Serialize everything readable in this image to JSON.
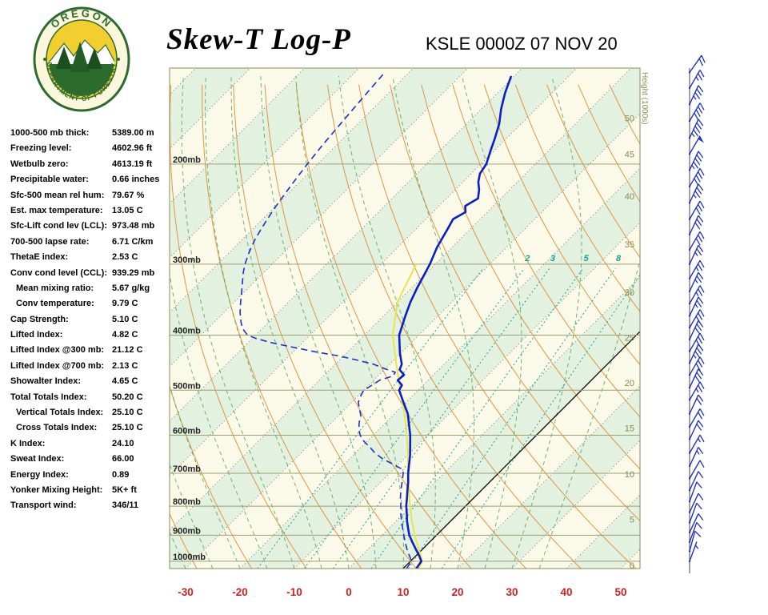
{
  "header": {
    "title": "Skew-T Log-P",
    "station_line": "KSLE 0000Z 07 NOV 20",
    "logo_text_top": "OREGON",
    "logo_text_bottom": "DEPARTMENT OF FORESTRY"
  },
  "indices": [
    {
      "label": "1000-500 mb thick:",
      "value": "5389.00 m"
    },
    {
      "label": "Freezing level:",
      "value": "4602.96 ft"
    },
    {
      "label": "Wetbulb zero:",
      "value": "4613.19 ft"
    },
    {
      "label": "Precipitable water:",
      "value": "0.66 inches"
    },
    {
      "label": "Sfc-500 mean rel hum:",
      "value": "79.67 %"
    },
    {
      "label": "Est. max temperature:",
      "value": "13.05 C"
    },
    {
      "label": "Sfc-Lift cond lev (LCL):",
      "value": "973.48 mb"
    },
    {
      "label": "700-500 lapse rate:",
      "value": "6.71 C/km"
    },
    {
      "label": "ThetaE index:",
      "value": "2.53 C"
    },
    {
      "label": "Conv cond level (CCL):",
      "value": "939.29 mb"
    },
    {
      "label": "Mean mixing ratio:",
      "value": "5.67 g/kg",
      "indent": true
    },
    {
      "label": "Conv temperature:",
      "value": "9.79 C",
      "indent": true
    },
    {
      "label": "Cap Strength:",
      "value": "5.10 C"
    },
    {
      "label": "Lifted Index:",
      "value": "4.82 C"
    },
    {
      "label": "Lifted Index @300 mb:",
      "value": "21.12 C"
    },
    {
      "label": "Lifted Index @700 mb:",
      "value": "2.13 C"
    },
    {
      "label": "Showalter Index:",
      "value": "4.65 C"
    },
    {
      "label": "Total Totals Index:",
      "value": "50.20 C"
    },
    {
      "label": "Vertical Totals Index:",
      "value": "25.10 C",
      "indent": true
    },
    {
      "label": "Cross Totals Index:",
      "value": "25.10 C",
      "indent": true
    },
    {
      "label": "K Index:",
      "value": "24.10"
    },
    {
      "label": "Sweat Index:",
      "value": "66.00"
    },
    {
      "label": "Energy Index:",
      "value": "0.89"
    },
    {
      "label": "Yonker Mixing Height:",
      "value": "5K+ ft"
    },
    {
      "label": "Transport wind:",
      "value": "346/11"
    }
  ],
  "chart_data": {
    "type": "line",
    "title": "Skew-T Log-P",
    "subtitle": "KSLE 0000Z 07 NOV 20",
    "pressure_range_mb": [
      1030,
      136
    ],
    "temp_axis_range_C": [
      -30,
      50
    ],
    "x_ticks": [
      -30,
      -20,
      -10,
      0,
      10,
      20,
      30,
      40,
      50
    ],
    "x_tick_labels": [
      "-30",
      "-20",
      "-10",
      "0",
      "10",
      "20",
      "30",
      "40",
      "50"
    ],
    "pressure_levels_mb": [
      200,
      300,
      400,
      500,
      600,
      700,
      800,
      900,
      1000
    ],
    "pressure_labels": [
      "200mb",
      "300mb",
      "400mb",
      "500mb",
      "600mb",
      "700mb",
      "800mb",
      "900mb",
      "1000mb"
    ],
    "height_axis_label": "Height (1000s)",
    "height_ticks": [
      {
        "label": "50",
        "p": 166
      },
      {
        "label": "45",
        "p": 192
      },
      {
        "label": "40",
        "p": 228
      },
      {
        "label": "35",
        "p": 277
      },
      {
        "label": "30",
        "p": 336
      },
      {
        "label": "25",
        "p": 404
      },
      {
        "label": "20",
        "p": 485
      },
      {
        "label": "15",
        "p": 583
      },
      {
        "label": "10",
        "p": 702
      },
      {
        "label": "5",
        "p": 843
      },
      {
        "label": "0",
        "p": 1016
      }
    ],
    "mixing_ratio_lines_gkg": [
      1,
      2,
      3,
      5,
      8,
      12
    ],
    "mixing_ratio_label_values": [
      2,
      3,
      5,
      8
    ],
    "mixing_ratio_labels": [
      "2",
      "3",
      "5",
      "8"
    ],
    "reference_isotherm_C": 10,
    "colors": {
      "band_cream": "#fbfae8",
      "band_green": "#e3f1e1",
      "dry_adiabat": "#df8a2d",
      "moist_adiabat": "#4ea24e",
      "mixing_ratio": "#18a0a0",
      "isotherm": "#777777",
      "pressure_line": "#a0a070",
      "border": "#8b8b5a",
      "axis_label_red": "#cc2222",
      "height_label": "#8b8b4f",
      "black_line": "#000000",
      "wind_barb": "#2233bb"
    },
    "series": [
      {
        "name": "parcel",
        "style": "solid",
        "color": "#e6e64a",
        "width": 2,
        "points_p_T": [
          [
            1030,
            12.8
          ],
          [
            1000,
            12.2
          ],
          [
            973,
            10.6
          ],
          [
            950,
            9.2
          ],
          [
            900,
            6.0
          ],
          [
            850,
            2.9
          ],
          [
            800,
            -0.2
          ],
          [
            750,
            -3.3
          ],
          [
            700,
            -6.6
          ],
          [
            650,
            -10.0
          ],
          [
            600,
            -13.8
          ],
          [
            550,
            -18.2
          ],
          [
            500,
            -23.3
          ],
          [
            450,
            -28.8
          ],
          [
            400,
            -34.8
          ],
          [
            350,
            -40.0
          ],
          [
            300,
            -43.5
          ]
        ]
      },
      {
        "name": "dewpoint",
        "style": "dashed",
        "color": "#1b2fd0",
        "width": 1.6,
        "points_p_T": [
          [
            1030,
            10.6
          ],
          [
            1000,
            10.2
          ],
          [
            975,
            8.6
          ],
          [
            950,
            7.0
          ],
          [
            925,
            5.5
          ],
          [
            900,
            4.0
          ],
          [
            875,
            2.5
          ],
          [
            850,
            1.0
          ],
          [
            825,
            -0.5
          ],
          [
            800,
            -1.9
          ],
          [
            775,
            -3.4
          ],
          [
            750,
            -4.8
          ],
          [
            725,
            -6.1
          ],
          [
            700,
            -7.5
          ],
          [
            690,
            -8.2
          ],
          [
            675,
            -11.0
          ],
          [
            660,
            -14.0
          ],
          [
            645,
            -16.4
          ],
          [
            630,
            -18.4
          ],
          [
            615,
            -20.6
          ],
          [
            600,
            -22.4
          ],
          [
            585,
            -23.8
          ],
          [
            570,
            -24.9
          ],
          [
            555,
            -25.8
          ],
          [
            540,
            -27.3
          ],
          [
            525,
            -28.8
          ],
          [
            510,
            -29.6
          ],
          [
            500,
            -30.0
          ],
          [
            490,
            -29.4
          ],
          [
            480,
            -28.9
          ],
          [
            472,
            -27.2
          ],
          [
            465,
            -27.5
          ],
          [
            458,
            -30.2
          ],
          [
            450,
            -33.0
          ],
          [
            443,
            -36.5
          ],
          [
            435,
            -41.0
          ],
          [
            428,
            -46.0
          ],
          [
            420,
            -51.0
          ],
          [
            412,
            -56.0
          ],
          [
            405,
            -59.5
          ],
          [
            400,
            -61.5
          ],
          [
            390,
            -63.5
          ],
          [
            380,
            -65.0
          ],
          [
            365,
            -67.0
          ],
          [
            350,
            -68.8
          ],
          [
            335,
            -70.6
          ],
          [
            320,
            -72.5
          ],
          [
            310,
            -73.8
          ],
          [
            300,
            -75.0
          ],
          [
            285,
            -76.5
          ],
          [
            270,
            -77.8
          ],
          [
            255,
            -78.8
          ],
          [
            240,
            -79.8
          ],
          [
            225,
            -80.6
          ],
          [
            210,
            -81.4
          ],
          [
            200,
            -81.9
          ],
          [
            185,
            -82.6
          ],
          [
            170,
            -83.2
          ],
          [
            155,
            -83.8
          ],
          [
            145,
            -84.2
          ],
          [
            138,
            -84.5
          ]
        ]
      },
      {
        "name": "temperature",
        "style": "solid",
        "color": "#0a1fc4",
        "width": 2.6,
        "points_p_T": [
          [
            1030,
            12.4
          ],
          [
            1000,
            12.0
          ],
          [
            975,
            10.4
          ],
          [
            950,
            8.6
          ],
          [
            925,
            6.8
          ],
          [
            900,
            5.0
          ],
          [
            875,
            3.5
          ],
          [
            850,
            2.0
          ],
          [
            825,
            0.6
          ],
          [
            800,
            -0.9
          ],
          [
            775,
            -2.2
          ],
          [
            750,
            -3.6
          ],
          [
            725,
            -5.0
          ],
          [
            700,
            -6.6
          ],
          [
            650,
            -9.6
          ],
          [
            600,
            -13.2
          ],
          [
            550,
            -17.6
          ],
          [
            525,
            -20.5
          ],
          [
            500,
            -23.5
          ],
          [
            490,
            -23.9
          ],
          [
            480,
            -25.6
          ],
          [
            470,
            -25.4
          ],
          [
            460,
            -27.2
          ],
          [
            450,
            -27.8
          ],
          [
            430,
            -30.2
          ],
          [
            400,
            -33.6
          ],
          [
            370,
            -36.0
          ],
          [
            350,
            -37.6
          ],
          [
            330,
            -39.0
          ],
          [
            300,
            -41.0
          ],
          [
            280,
            -42.8
          ],
          [
            260,
            -44.2
          ],
          [
            250,
            -45.0
          ],
          [
            243,
            -44.0
          ],
          [
            237,
            -45.2
          ],
          [
            230,
            -44.2
          ],
          [
            222,
            -45.6
          ],
          [
            215,
            -47.2
          ],
          [
            208,
            -48.4
          ],
          [
            200,
            -49.0
          ],
          [
            190,
            -50.6
          ],
          [
            180,
            -52.2
          ],
          [
            170,
            -54.0
          ],
          [
            160,
            -56.4
          ],
          [
            150,
            -58.6
          ],
          [
            140,
            -60.6
          ]
        ]
      }
    ],
    "winds": [
      [
        1000,
        20,
        5
      ],
      [
        960,
        15,
        8
      ],
      [
        925,
        20,
        10
      ],
      [
        890,
        25,
        10
      ],
      [
        855,
        20,
        12
      ],
      [
        820,
        25,
        10
      ],
      [
        785,
        20,
        12
      ],
      [
        750,
        25,
        12
      ],
      [
        715,
        30,
        12
      ],
      [
        680,
        25,
        15
      ],
      [
        645,
        30,
        15
      ],
      [
        610,
        25,
        18
      ],
      [
        580,
        30,
        20
      ],
      [
        550,
        25,
        22
      ],
      [
        520,
        30,
        25
      ],
      [
        495,
        25,
        28
      ],
      [
        470,
        30,
        32
      ],
      [
        448,
        25,
        35
      ],
      [
        427,
        30,
        30
      ],
      [
        407,
        25,
        30
      ],
      [
        388,
        30,
        28
      ],
      [
        370,
        25,
        25
      ],
      [
        352,
        30,
        24
      ],
      [
        335,
        25,
        24
      ],
      [
        318,
        30,
        25
      ],
      [
        300,
        25,
        25
      ],
      [
        283,
        30,
        28
      ],
      [
        266,
        25,
        30
      ],
      [
        250,
        30,
        32
      ],
      [
        234,
        25,
        36
      ],
      [
        219,
        30,
        40
      ],
      [
        205,
        25,
        45
      ],
      [
        192,
        30,
        50
      ],
      [
        180,
        25,
        46
      ],
      [
        168,
        30,
        40
      ],
      [
        157,
        25,
        33
      ],
      [
        147,
        30,
        26
      ],
      [
        138,
        35,
        20
      ]
    ]
  }
}
